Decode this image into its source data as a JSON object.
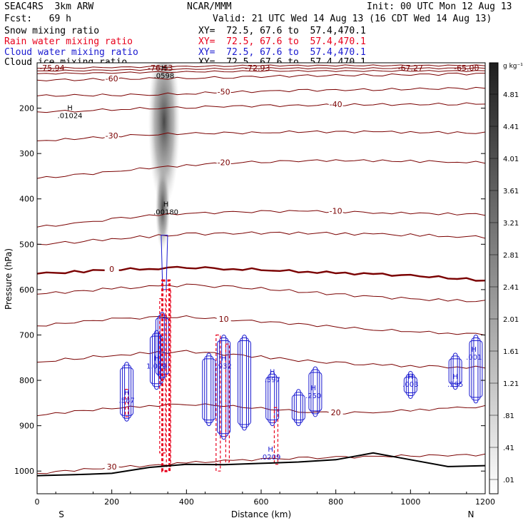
{
  "header": {
    "model": "SEAC4RS  3km ARW",
    "org": "NCAR/MMM",
    "init": "Init: 00 UTC Mon 12 Aug 13",
    "fcst": "Fcst:   69 h",
    "valid": "Valid: 21 UTC Wed 14 Aug 13 (16 CDT Wed 14 Aug 13)"
  },
  "fields": [
    {
      "label": "Snow mixing ratio",
      "xy": "XY=  72.5, 67.6 to  57.4,470.1",
      "color": "#000000"
    },
    {
      "label": "Rain water mixing ratio",
      "xy": "XY=  72.5, 67.6 to  57.4,470.1",
      "color": "#e8001c"
    },
    {
      "label": "Cloud water mixing ratio",
      "xy": "XY=  72.5, 67.6 to  57.4,470.1",
      "color": "#1a1ad0"
    },
    {
      "label": "Cloud ice mixing ratio",
      "xy": "XY=  72.5, 67.6 to  57.4,470.1",
      "color": "#000000"
    }
  ],
  "colors": {
    "temperature": "#7a0000",
    "rain": "#e8001c",
    "cloud_water": "#1a1ad0",
    "terrain": "#000000"
  },
  "colorbar": {
    "unit": "g kg⁻¹",
    "labels": [
      "4.81",
      "4.41",
      "4.01",
      "3.61",
      "3.21",
      "2.81",
      "2.41",
      "2.01",
      "1.61",
      "1.21",
      ".81",
      ".41",
      ".01"
    ]
  },
  "chart_data": {
    "type": "heatmap",
    "xlabel": "Distance (km)",
    "ylabel": "Pressure (hPa)",
    "xlim": [
      0,
      1200
    ],
    "ylim": [
      1050,
      100
    ],
    "x_ticks": [
      "0",
      "200",
      "400",
      "600",
      "800",
      "1000",
      "1200"
    ],
    "y_ticks": [
      "200",
      "300",
      "400",
      "500",
      "600",
      "700",
      "800",
      "900",
      "1000"
    ],
    "endpoint_labels": [
      "S",
      "N"
    ],
    "temperature_contours": [
      {
        "label": "-60",
        "y": [
          138,
          137,
          136,
          135,
          134,
          132,
          130,
          129,
          128,
          127,
          126,
          125,
          124
        ]
      },
      {
        "label": "-50",
        "y": [
          173,
          172,
          171,
          170,
          168,
          165,
          163,
          161,
          160,
          159,
          158,
          157,
          156
        ]
      },
      {
        "label": "-40",
        "y": [
          208,
          206,
          203,
          200,
          198,
          196,
          195,
          194,
          193,
          192,
          192,
          191,
          190
        ]
      },
      {
        "label": "-30",
        "y": [
          272,
          268,
          262,
          258,
          256,
          255,
          254,
          252,
          252,
          252,
          253,
          254,
          255
        ]
      },
      {
        "label": "-20",
        "y": [
          355,
          348,
          340,
          332,
          326,
          321,
          318,
          316,
          315,
          316,
          317,
          318,
          320
        ]
      },
      {
        "label": "-10",
        "y": [
          462,
          455,
          445,
          437,
          432,
          430,
          428,
          427,
          428,
          430,
          432,
          433,
          434
        ]
      },
      {
        "label": "0",
        "y": [
          565,
          561,
          556,
          554,
          550,
          554,
          556,
          560,
          563,
          566,
          569,
          574,
          580
        ]
      },
      {
        "label": "10",
        "y": [
          680,
          672,
          665,
          662,
          660,
          666,
          670,
          676,
          682,
          688,
          692,
          696,
          698
        ]
      },
      {
        "label": "20",
        "y": [
          878,
          868,
          862,
          856,
          852,
          856,
          862,
          868,
          872,
          870,
          866,
          862,
          858
        ]
      },
      {
        "label": "30",
        "y": [
          1005,
          998,
          992,
          988,
          982,
          978,
          974,
          972,
          970,
          968,
          966,
          965,
          964
        ]
      }
    ],
    "terrain_pressure": [
      1010,
      1008,
      1005,
      992,
      985,
      986,
      983,
      980,
      975,
      960,
      975,
      990,
      988
    ],
    "snow_max": {
      "x": 340,
      "p": 120,
      "value": ".0598"
    },
    "cloud_ice_max": {
      "x": 345,
      "p": 420,
      "value": ".00180"
    },
    "markers": [
      {
        "x": 88,
        "p": 208,
        "text": ".01024"
      },
      {
        "x": 320,
        "p": 760,
        "text": "1.019"
      },
      {
        "x": 500,
        "p": 760,
        "text": ".932"
      },
      {
        "x": 630,
        "p": 790,
        "text": ".597"
      },
      {
        "x": 740,
        "p": 825,
        "text": ".250"
      },
      {
        "x": 240,
        "p": 835,
        "text": ".587"
      },
      {
        "x": 1000,
        "p": 800,
        "text": ".003"
      },
      {
        "x": 1120,
        "p": 800,
        "text": ".395"
      },
      {
        "x": 1170,
        "p": 740,
        "text": ".001"
      },
      {
        "x": 625,
        "p": 960,
        "text": ".0209"
      }
    ],
    "top_values": [
      "-75.94",
      "-76.63",
      "-72.93",
      "-67.27",
      "-65.00"
    ]
  }
}
